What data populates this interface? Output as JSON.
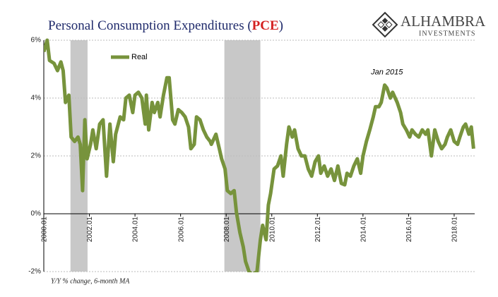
{
  "chart_data": {
    "type": "line",
    "title_parts": [
      "Personal Consumption Expenditures (",
      "PCE",
      ")"
    ],
    "brand": "ALHAMBRA",
    "brand_sub": "INVESTMENTS",
    "note": "Y/Y % change, 6-month MA",
    "annotation": {
      "text": "Jan 2015",
      "x": 2015.05,
      "y": 4.35
    },
    "shaded_ranges": [
      [
        2001.17,
        2001.92
      ],
      [
        2007.92,
        2009.5
      ]
    ],
    "shade_color": "#c8c8c8",
    "legend": "upper left",
    "grid": true,
    "xlim": [
      2000,
      2018.9
    ],
    "ylim": [
      -2,
      6
    ],
    "yticks": [
      {
        "value": -2,
        "label": "-2%"
      },
      {
        "value": 0,
        "label": "0%"
      },
      {
        "value": 2,
        "label": "2%"
      },
      {
        "value": 4,
        "label": "4%"
      },
      {
        "value": 6,
        "label": "6%"
      }
    ],
    "xticks": [
      {
        "value": 2000,
        "label": "2000.01"
      },
      {
        "value": 2002,
        "label": "2002.01"
      },
      {
        "value": 2004,
        "label": "2004.01"
      },
      {
        "value": 2006,
        "label": "2006.01"
      },
      {
        "value": 2008,
        "label": "2008.01"
      },
      {
        "value": 2010,
        "label": "2010.01"
      },
      {
        "value": 2012,
        "label": "2012.01"
      },
      {
        "value": 2014,
        "label": "2014.01"
      },
      {
        "value": 2016,
        "label": "2016.01"
      },
      {
        "value": 2018,
        "label": "2018.01"
      }
    ],
    "x": [
      2000.0,
      2000.15,
      2000.25,
      2000.45,
      2000.6,
      2000.75,
      2000.85,
      2000.95,
      2001.1,
      2001.2,
      2001.35,
      2001.5,
      2001.6,
      2001.7,
      2001.8,
      2001.9,
      2002.05,
      2002.15,
      2002.3,
      2002.45,
      2002.6,
      2002.75,
      2002.9,
      2003.05,
      2003.15,
      2003.35,
      2003.5,
      2003.6,
      2003.75,
      2003.9,
      2004.0,
      2004.15,
      2004.3,
      2004.45,
      2004.5,
      2004.6,
      2004.75,
      2004.85,
      2005.0,
      2005.1,
      2005.25,
      2005.4,
      2005.5,
      2005.65,
      2005.75,
      2005.9,
      2006.05,
      2006.2,
      2006.35,
      2006.45,
      2006.6,
      2006.7,
      2006.85,
      2007.0,
      2007.15,
      2007.3,
      2007.35,
      2007.55,
      2007.7,
      2007.8,
      2007.95,
      2008.05,
      2008.2,
      2008.35,
      2008.45,
      2008.6,
      2008.75,
      2008.85,
      2009.0,
      2009.15,
      2009.35,
      2009.5,
      2009.6,
      2009.75,
      2009.85,
      2009.95,
      2010.1,
      2010.25,
      2010.4,
      2010.5,
      2010.65,
      2010.75,
      2010.9,
      2011.0,
      2011.15,
      2011.3,
      2011.45,
      2011.6,
      2011.75,
      2011.9,
      2012.05,
      2012.15,
      2012.3,
      2012.45,
      2012.6,
      2012.75,
      2012.9,
      2013.05,
      2013.2,
      2013.3,
      2013.45,
      2013.6,
      2013.75,
      2013.9,
      2014.0,
      2014.15,
      2014.3,
      2014.45,
      2014.55,
      2014.7,
      2014.8,
      2014.95,
      2015.05,
      2015.2,
      2015.3,
      2015.5,
      2015.65,
      2015.75,
      2015.9,
      2016.05,
      2016.15,
      2016.3,
      2016.45,
      2016.6,
      2016.75,
      2016.85,
      2017.0,
      2017.15,
      2017.3,
      2017.45,
      2017.6,
      2017.7,
      2017.85,
      2018.0,
      2018.15,
      2018.25,
      2018.4,
      2018.5,
      2018.65,
      2018.75,
      2018.85
    ],
    "series": [
      {
        "name": "Real",
        "color": "#77933c",
        "values": [
          5.6,
          6.0,
          5.3,
          5.2,
          4.95,
          5.25,
          4.95,
          3.85,
          4.1,
          2.65,
          2.5,
          2.65,
          2.4,
          0.8,
          3.25,
          1.9,
          2.4,
          2.9,
          2.25,
          3.1,
          3.25,
          1.3,
          3.1,
          1.8,
          2.75,
          3.35,
          3.25,
          4.0,
          4.1,
          3.5,
          4.1,
          4.2,
          4.0,
          3.1,
          4.1,
          2.9,
          3.85,
          3.5,
          3.85,
          3.35,
          4.1,
          4.7,
          4.7,
          3.25,
          3.1,
          3.6,
          3.5,
          3.35,
          3.0,
          2.25,
          2.4,
          3.35,
          3.25,
          2.9,
          2.65,
          2.5,
          2.4,
          2.75,
          2.25,
          1.9,
          1.55,
          0.8,
          0.7,
          0.8,
          0.05,
          -0.65,
          -1.15,
          -1.65,
          -2.0,
          -2.1,
          -2.0,
          -0.9,
          -0.4,
          -0.9,
          0.3,
          0.7,
          1.55,
          1.65,
          2.0,
          1.3,
          2.4,
          3.0,
          2.65,
          2.9,
          2.25,
          2.0,
          2.0,
          1.55,
          1.3,
          1.8,
          2.0,
          1.4,
          1.65,
          1.3,
          1.55,
          1.15,
          1.65,
          1.05,
          1.0,
          1.4,
          1.3,
          1.65,
          1.9,
          1.4,
          2.0,
          2.5,
          2.9,
          3.35,
          3.7,
          3.7,
          3.85,
          4.45,
          4.35,
          4.0,
          4.2,
          3.85,
          3.5,
          3.1,
          2.9,
          2.65,
          2.9,
          2.75,
          2.65,
          2.9,
          2.75,
          2.9,
          2.0,
          2.9,
          2.5,
          2.25,
          2.4,
          2.65,
          2.9,
          2.5,
          2.4,
          2.65,
          3.0,
          3.1,
          2.75,
          3.0,
          2.25
        ]
      }
    ]
  }
}
